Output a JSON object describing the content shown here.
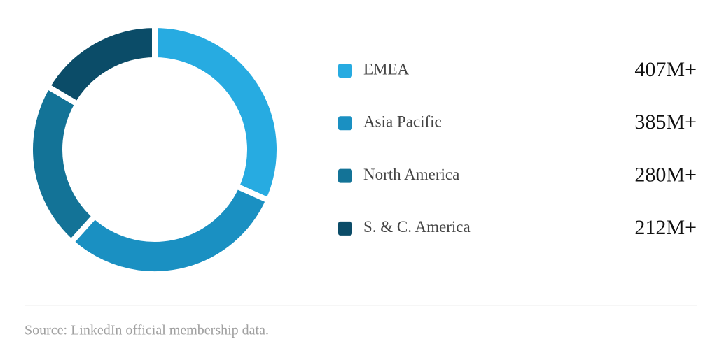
{
  "chart_data": {
    "type": "donut",
    "categories": [
      "EMEA",
      "Asia Pacific",
      "North America",
      "S. & C. America"
    ],
    "values": [
      407,
      385,
      280,
      212
    ],
    "value_labels": [
      "407M+",
      "385M+",
      "280M+",
      "212M+"
    ],
    "colors": [
      "#27abe1",
      "#1a90c2",
      "#137397",
      "#0b4c68"
    ],
    "source": "Source: LinkedIn official membership data."
  }
}
